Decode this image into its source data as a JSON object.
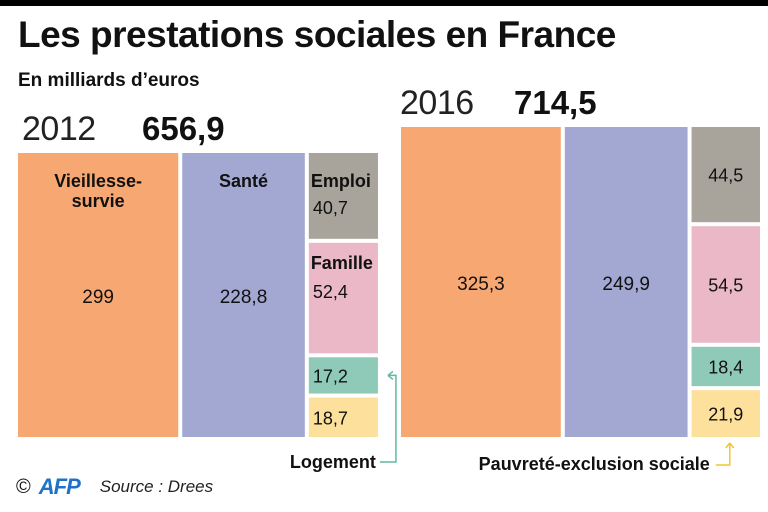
{
  "header": {
    "title": "Les prestations sociales en France",
    "subtitle": "En milliards d’euros"
  },
  "footer": {
    "copyright_symbol": "©",
    "logo": "AFP",
    "source": "Source : Drees"
  },
  "chart_data": {
    "type": "treemap",
    "title": "Les prestations sociales en France",
    "subtitle": "En milliards d’euros",
    "unit": "milliards d’euros",
    "categories": [
      "Vieillesse-survie",
      "Santé",
      "Emploi",
      "Famille",
      "Logement",
      "Pauvreté-exclusion sociale"
    ],
    "colors": {
      "Vieillesse-survie": "#f7a872",
      "Santé": "#a3a8d3",
      "Emploi": "#a8a49c",
      "Famille": "#ebb8c7",
      "Logement": "#8fcab8",
      "Pauvreté-exclusion sociale": "#fde09c"
    },
    "series": [
      {
        "name": "2012",
        "year_label": "2012",
        "total_label": "656,9",
        "total": 656.9,
        "values": [
          299,
          228.8,
          40.7,
          52.4,
          17.2,
          18.7
        ],
        "value_labels": [
          "299",
          "228,8",
          "40,7",
          "52,4",
          "17,2",
          "18,7"
        ],
        "category_labels_shown": [
          "Vieillesse-\nsurvie",
          "Santé",
          "Emploi",
          "Famille"
        ]
      },
      {
        "name": "2016",
        "year_label": "2016",
        "total_label": "714,5",
        "total": 714.5,
        "values": [
          325.3,
          249.9,
          44.5,
          54.5,
          18.4,
          21.9
        ],
        "value_labels": [
          "325,3",
          "249,9",
          "44,5",
          "54,5",
          "18,4",
          "21,9"
        ]
      }
    ],
    "annotations": [
      {
        "text": "Logement",
        "points_to": "Logement",
        "color": "#5fb8a4"
      },
      {
        "text": "Pauvreté-exclusion sociale",
        "points_to": "Pauvreté-exclusion sociale",
        "color": "#f2c530"
      }
    ]
  }
}
